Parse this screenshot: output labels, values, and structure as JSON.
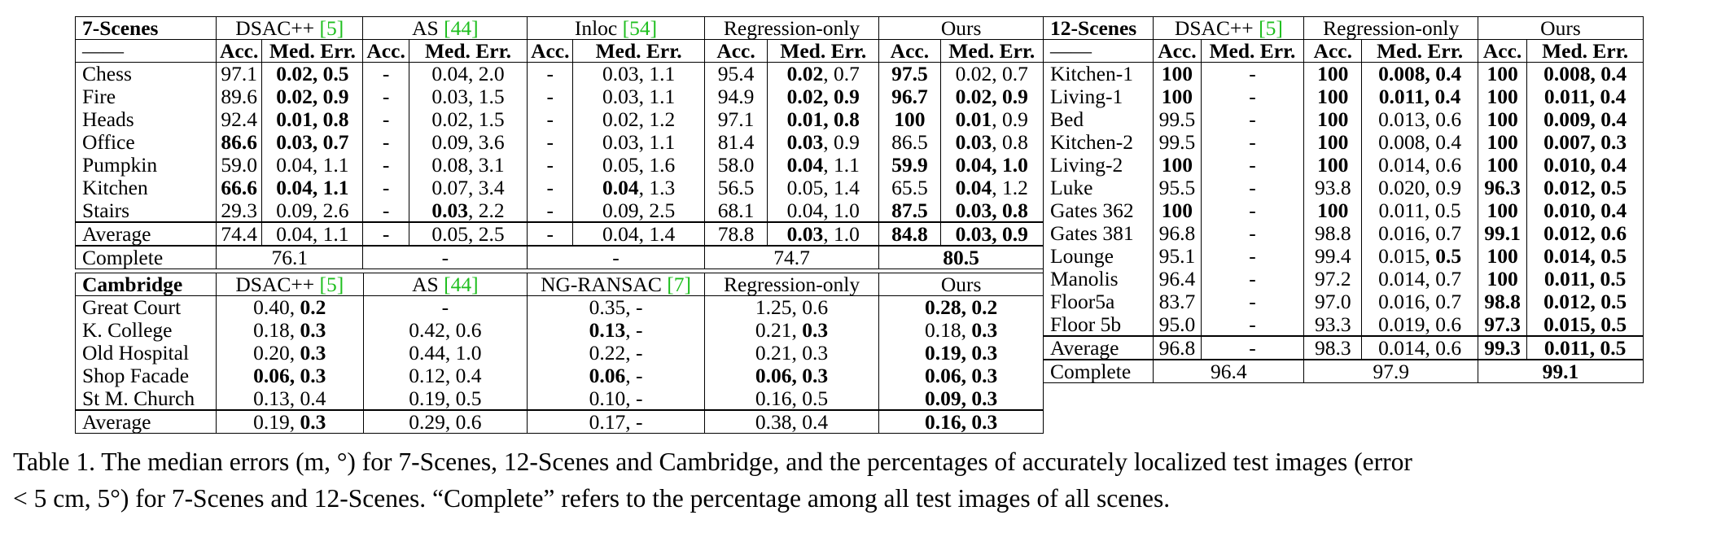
{
  "seven_scenes": {
    "header": {
      "title": "7-Scenes",
      "methods": [
        "DSAC++ ",
        "AS ",
        "Inloc ",
        "Regression-only",
        "Ours"
      ],
      "cites": [
        "[5]",
        "[44]",
        "[54]",
        "",
        ""
      ],
      "dash": "——",
      "acc": "Acc.",
      "err": "Med. Err."
    },
    "rows": [
      {
        "scene": "Chess",
        "cells": [
          [
            "97.1",
            false
          ],
          [
            "0.02, 0.5",
            true
          ],
          [
            "-",
            false
          ],
          [
            "0.04, 2.0",
            false
          ],
          [
            "-",
            false
          ],
          [
            "0.03, 1.1",
            false
          ],
          [
            "95.4",
            false
          ],
          [
            "0.02, 0.7",
            false
          ],
          [
            "97.5",
            true
          ],
          [
            "0.02, 0.7",
            false
          ]
        ]
      },
      {
        "scene": "Fire",
        "cells": [
          [
            "89.6",
            false
          ],
          [
            "0.02, 0.9",
            true
          ],
          [
            "-",
            false
          ],
          [
            "0.03, 1.5",
            false
          ],
          [
            "-",
            false
          ],
          [
            "0.03, 1.1",
            false
          ],
          [
            "94.9",
            false
          ],
          [
            "0.02, 0.9",
            true
          ],
          [
            "96.7",
            true
          ],
          [
            "0.02, 0.9",
            true
          ]
        ]
      },
      {
        "scene": "Heads",
        "cells": [
          [
            "92.4",
            false
          ],
          [
            "0.01, 0.8",
            true
          ],
          [
            "-",
            false
          ],
          [
            "0.02, 1.5",
            false
          ],
          [
            "-",
            false
          ],
          [
            "0.02, 1.2",
            false
          ],
          [
            "97.1",
            false
          ],
          [
            "0.01, 0.8",
            true
          ],
          [
            "100",
            true
          ],
          [
            "0.01, 0.9",
            false
          ]
        ]
      },
      {
        "scene": "Office",
        "cells": [
          [
            "86.6",
            true
          ],
          [
            "0.03, 0.7",
            true
          ],
          [
            "-",
            false
          ],
          [
            "0.09, 3.6",
            false
          ],
          [
            "-",
            false
          ],
          [
            "0.03, 1.1",
            false
          ],
          [
            "81.4",
            false
          ],
          [
            "0.03, 0.9",
            false
          ],
          [
            "86.5",
            false
          ],
          [
            "0.03, 0.8",
            false
          ]
        ]
      },
      {
        "scene": "Pumpkin",
        "cells": [
          [
            "59.0",
            false
          ],
          [
            "0.04, 1.1",
            false
          ],
          [
            "-",
            false
          ],
          [
            "0.08, 3.1",
            false
          ],
          [
            "-",
            false
          ],
          [
            "0.05, 1.6",
            false
          ],
          [
            "58.0",
            false
          ],
          [
            "0.04, 1.1",
            false
          ],
          [
            "59.9",
            true
          ],
          [
            "0.04, 1.0",
            true
          ]
        ]
      },
      {
        "scene": "Kitchen",
        "cells": [
          [
            "66.6",
            true
          ],
          [
            "0.04, 1.1",
            true
          ],
          [
            "-",
            false
          ],
          [
            "0.07, 3.4",
            false
          ],
          [
            "-",
            false
          ],
          [
            "0.04, 1.3",
            false
          ],
          [
            "56.5",
            false
          ],
          [
            "0.05, 1.4",
            false
          ],
          [
            "65.5",
            false
          ],
          [
            "0.04, 1.2",
            false
          ]
        ]
      },
      {
        "scene": "Stairs",
        "cells": [
          [
            "29.3",
            false
          ],
          [
            "0.09, 2.6",
            false
          ],
          [
            "-",
            false
          ],
          [
            "0.03, 2.2",
            false
          ],
          [
            "-",
            false
          ],
          [
            "0.09, 2.5",
            false
          ],
          [
            "68.1",
            false
          ],
          [
            "0.04, 1.0",
            false
          ],
          [
            "87.5",
            true
          ],
          [
            "0.03, 0.8",
            true
          ]
        ]
      }
    ],
    "average": {
      "scene": "Average",
      "cells": [
        [
          "74.4",
          false
        ],
        [
          "0.04, 1.1",
          false
        ],
        [
          "-",
          false
        ],
        [
          "0.05, 2.5",
          false
        ],
        [
          "-",
          false
        ],
        [
          "0.04, 1.4",
          false
        ],
        [
          "78.8",
          false
        ],
        [
          "0.03, 1.0",
          false
        ],
        [
          "84.8",
          true
        ],
        [
          "0.03, 0.9",
          true
        ]
      ]
    },
    "complete": {
      "label": "Complete",
      "values": [
        "76.1",
        "-",
        "-",
        "74.7",
        "80.5"
      ]
    }
  },
  "cambridge": {
    "header": {
      "title": "Cambridge",
      "methods": [
        "DSAC++ ",
        "AS ",
        "NG-RANSAC ",
        "Regression-only",
        "Ours"
      ],
      "cites": [
        "[5]",
        "[44]",
        "[7]",
        "",
        ""
      ]
    },
    "rows": [
      {
        "scene": "Great Court",
        "cells": [
          "0.40, 0.2",
          "-",
          "0.35, -",
          "1.25, 0.6",
          "0.28, 0.2"
        ]
      },
      {
        "scene": "K. College",
        "cells": [
          "0.18, 0.3",
          "0.42, 0.6",
          "0.13, -",
          "0.21, 0.3",
          "0.18, 0.3"
        ]
      },
      {
        "scene": "Old Hospital",
        "cells": [
          "0.20, 0.3",
          "0.44, 1.0",
          "0.22, -",
          "0.21, 0.3",
          "0.19, 0.3"
        ]
      },
      {
        "scene": "Shop Facade",
        "cells": [
          "0.06, 0.3",
          "0.12, 0.4",
          "0.06, -",
          "0.06, 0.3",
          "0.06, 0.3"
        ]
      },
      {
        "scene": "St M. Church",
        "cells": [
          "0.13, 0.4",
          "0.19, 0.5",
          "0.10, -",
          "0.16, 0.5",
          "0.09, 0.3"
        ]
      }
    ],
    "average": {
      "scene": "Average",
      "cells": [
        "0.19, 0.3",
        "0.29, 0.6",
        "0.17, -",
        "0.38, 0.4",
        "0.16, 0.3"
      ]
    }
  },
  "twelve_scenes": {
    "header": {
      "title": "12-Scenes",
      "methods": [
        "DSAC++ ",
        "Regression-only",
        "Ours"
      ],
      "cites": [
        "[5]",
        "",
        ""
      ]
    },
    "rows": [
      {
        "scene": "Kitchen-1",
        "cells": [
          [
            "100",
            true
          ],
          [
            "-",
            false
          ],
          [
            "100",
            true
          ],
          [
            "0.008, 0.4",
            true
          ],
          [
            "100",
            true
          ],
          [
            "0.008, 0.4",
            true
          ]
        ]
      },
      {
        "scene": "Living-1",
        "cells": [
          [
            "100",
            true
          ],
          [
            "-",
            false
          ],
          [
            "100",
            true
          ],
          [
            "0.011, 0.4",
            true
          ],
          [
            "100",
            true
          ],
          [
            "0.011, 0.4",
            true
          ]
        ]
      },
      {
        "scene": "Bed",
        "cells": [
          [
            "99.5",
            false
          ],
          [
            "-",
            false
          ],
          [
            "100",
            true
          ],
          [
            "0.013, 0.6",
            false
          ],
          [
            "100",
            true
          ],
          [
            "0.009, 0.4",
            true
          ]
        ]
      },
      {
        "scene": "Kitchen-2",
        "cells": [
          [
            "99.5",
            false
          ],
          [
            "-",
            false
          ],
          [
            "100",
            true
          ],
          [
            "0.008, 0.4",
            false
          ],
          [
            "100",
            true
          ],
          [
            "0.007, 0.3",
            true
          ]
        ]
      },
      {
        "scene": "Living-2",
        "cells": [
          [
            "100",
            true
          ],
          [
            "-",
            false
          ],
          [
            "100",
            true
          ],
          [
            "0.014, 0.6",
            false
          ],
          [
            "100",
            true
          ],
          [
            "0.010, 0.4",
            true
          ]
        ]
      },
      {
        "scene": "Luke",
        "cells": [
          [
            "95.5",
            false
          ],
          [
            "-",
            false
          ],
          [
            "93.8",
            false
          ],
          [
            "0.020, 0.9",
            false
          ],
          [
            "96.3",
            true
          ],
          [
            "0.012, 0.5",
            true
          ]
        ]
      },
      {
        "scene": "Gates 362",
        "cells": [
          [
            "100",
            true
          ],
          [
            "-",
            false
          ],
          [
            "100",
            true
          ],
          [
            "0.011, 0.5",
            false
          ],
          [
            "100",
            true
          ],
          [
            "0.010, 0.4",
            true
          ]
        ]
      },
      {
        "scene": "Gates 381",
        "cells": [
          [
            "96.8",
            false
          ],
          [
            "-",
            false
          ],
          [
            "98.8",
            false
          ],
          [
            "0.016, 0.7",
            false
          ],
          [
            "99.1",
            true
          ],
          [
            "0.012, 0.6",
            true
          ]
        ]
      },
      {
        "scene": "Lounge",
        "cells": [
          [
            "95.1",
            false
          ],
          [
            "-",
            false
          ],
          [
            "99.4",
            false
          ],
          [
            "0.015, 0.5",
            false
          ],
          [
            "100",
            true
          ],
          [
            "0.014, 0.5",
            true
          ]
        ]
      },
      {
        "scene": "Manolis",
        "cells": [
          [
            "96.4",
            false
          ],
          [
            "-",
            false
          ],
          [
            "97.2",
            false
          ],
          [
            "0.014, 0.7",
            false
          ],
          [
            "100",
            true
          ],
          [
            "0.011, 0.5",
            true
          ]
        ]
      },
      {
        "scene": "Floor5a",
        "cells": [
          [
            "83.7",
            false
          ],
          [
            "-",
            false
          ],
          [
            "97.0",
            false
          ],
          [
            "0.016, 0.7",
            false
          ],
          [
            "98.8",
            true
          ],
          [
            "0.012, 0.5",
            true
          ]
        ]
      },
      {
        "scene": "Floor 5b",
        "cells": [
          [
            "95.0",
            false
          ],
          [
            "-",
            false
          ],
          [
            "93.3",
            false
          ],
          [
            "0.019, 0.6",
            false
          ],
          [
            "97.3",
            true
          ],
          [
            "0.015, 0.5",
            true
          ]
        ]
      }
    ],
    "average": {
      "scene": "Average",
      "cells": [
        [
          "96.8",
          false
        ],
        [
          "-",
          false
        ],
        [
          "98.3",
          false
        ],
        [
          "0.014, 0.6",
          false
        ],
        [
          "99.3",
          true
        ],
        [
          "0.011, 0.5",
          true
        ]
      ]
    },
    "complete": {
      "label": "Complete",
      "values": [
        "96.4",
        "97.9",
        "99.1"
      ]
    }
  },
  "caption": {
    "line1": "Table 1. The median errors (m, °) for 7-Scenes, 12-Scenes and Cambridge, and the percentages of accurately localized test images (error",
    "line2": "< 5 cm, 5°) for 7-Scenes and 12-Scenes. “Complete” refers to the percentage among all test images of all scenes."
  }
}
